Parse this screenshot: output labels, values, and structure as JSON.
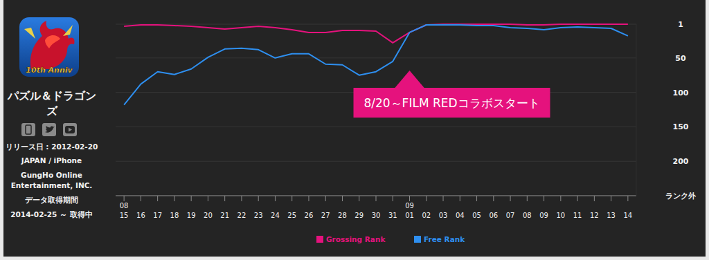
{
  "app": {
    "title": "パズル＆ドラゴンズ",
    "icon_text": "10th Anniv",
    "info": [
      "リリース日 : 2012-02-20",
      "JAPAN / iPhone",
      "GungHo Online Entertainment, INC.",
      "データ取得期間",
      "2014-02-25 ～ 取得中"
    ]
  },
  "chart_data": {
    "type": "line",
    "categories": [
      "15",
      "16",
      "17",
      "18",
      "19",
      "20",
      "21",
      "22",
      "23",
      "24",
      "25",
      "26",
      "27",
      "28",
      "29",
      "30",
      "31",
      "01",
      "02",
      "03",
      "04",
      "05",
      "06",
      "07",
      "08",
      "09",
      "10",
      "11",
      "12",
      "13",
      "14"
    ],
    "month_labels": [
      "08",
      null,
      null,
      null,
      null,
      null,
      null,
      null,
      null,
      null,
      null,
      null,
      null,
      null,
      null,
      null,
      null,
      "09",
      null,
      null,
      null,
      null,
      null,
      null,
      null,
      null,
      null,
      null,
      null,
      null,
      null
    ],
    "series": [
      {
        "name": "Grossing Rank",
        "color": "#e5127d",
        "values": [
          4,
          2,
          2,
          3,
          4,
          6,
          8,
          6,
          4,
          6,
          9,
          13,
          13,
          10,
          10,
          11,
          28,
          13,
          2,
          1,
          1,
          1,
          1,
          1,
          2,
          2,
          1,
          1,
          1,
          1,
          1
        ]
      },
      {
        "name": "Free Rank",
        "color": "#2e8ff0",
        "values": [
          118,
          88,
          70,
          74,
          66,
          49,
          37,
          36,
          38,
          50,
          44,
          44,
          59,
          60,
          75,
          70,
          55,
          13,
          2,
          2,
          2,
          3,
          3,
          6,
          7,
          9,
          6,
          5,
          6,
          7,
          18
        ]
      }
    ],
    "ylim": [
      250,
      1
    ],
    "yticks": [
      1,
      50,
      100,
      150,
      200,
      {
        "value": 250,
        "label": "ランク外"
      }
    ],
    "grid": true,
    "legend": "bottom",
    "annotation": {
      "text": "8/20～FILM REDコラボスタート",
      "category_index": 17
    }
  }
}
